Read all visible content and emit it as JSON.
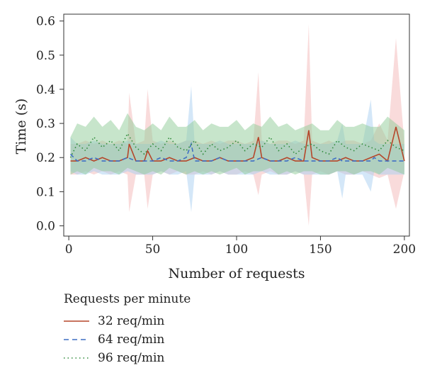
{
  "chart_data": {
    "type": "line",
    "title": "",
    "xlabel": "Number of requests",
    "ylabel": "Time (s)",
    "xlim": [
      -3,
      203
    ],
    "ylim": [
      -0.03,
      0.62
    ],
    "xticks": [
      0,
      50,
      100,
      150,
      200
    ],
    "yticks": [
      0.0,
      0.1,
      0.2,
      0.3,
      0.4,
      0.5,
      0.6
    ],
    "xtick_labels": [
      "0",
      "50",
      "100",
      "150",
      "200"
    ],
    "ytick_labels": [
      "0.0",
      "0.1",
      "0.2",
      "0.3",
      "0.4",
      "0.5",
      "0.6"
    ],
    "grid": false,
    "legend_position": "below",
    "legend_title": "Requests per minute",
    "series": [
      {
        "name": "32 req/min",
        "color": "#b5462a",
        "band_color": "#f4b8b8",
        "line_style": "solid",
        "x": [
          1,
          5,
          10,
          15,
          20,
          25,
          30,
          35,
          36,
          40,
          45,
          47,
          50,
          55,
          60,
          65,
          70,
          75,
          80,
          85,
          90,
          95,
          100,
          105,
          110,
          113,
          115,
          120,
          125,
          130,
          135,
          140,
          143,
          145,
          150,
          155,
          160,
          165,
          170,
          175,
          180,
          185,
          190,
          195,
          200
        ],
        "y": [
          0.19,
          0.19,
          0.2,
          0.19,
          0.2,
          0.19,
          0.19,
          0.2,
          0.24,
          0.19,
          0.19,
          0.22,
          0.19,
          0.19,
          0.2,
          0.19,
          0.19,
          0.2,
          0.19,
          0.19,
          0.2,
          0.19,
          0.19,
          0.19,
          0.2,
          0.26,
          0.2,
          0.19,
          0.19,
          0.2,
          0.19,
          0.19,
          0.28,
          0.2,
          0.19,
          0.19,
          0.19,
          0.2,
          0.19,
          0.19,
          0.2,
          0.21,
          0.19,
          0.29,
          0.19
        ],
        "y_low": [
          0.15,
          0.15,
          0.16,
          0.15,
          0.16,
          0.15,
          0.16,
          0.15,
          0.04,
          0.15,
          0.15,
          0.05,
          0.15,
          0.16,
          0.15,
          0.16,
          0.15,
          0.15,
          0.16,
          0.15,
          0.16,
          0.15,
          0.15,
          0.16,
          0.15,
          0.09,
          0.15,
          0.16,
          0.15,
          0.15,
          0.16,
          0.15,
          0.0,
          0.15,
          0.16,
          0.15,
          0.16,
          0.15,
          0.15,
          0.16,
          0.15,
          0.14,
          0.15,
          0.05,
          0.16
        ],
        "y_high": [
          0.24,
          0.24,
          0.25,
          0.24,
          0.25,
          0.24,
          0.25,
          0.24,
          0.39,
          0.24,
          0.25,
          0.4,
          0.25,
          0.24,
          0.25,
          0.24,
          0.25,
          0.25,
          0.24,
          0.25,
          0.24,
          0.25,
          0.25,
          0.24,
          0.25,
          0.45,
          0.25,
          0.24,
          0.25,
          0.25,
          0.24,
          0.25,
          0.59,
          0.25,
          0.24,
          0.25,
          0.24,
          0.25,
          0.25,
          0.24,
          0.25,
          0.3,
          0.25,
          0.55,
          0.24
        ]
      },
      {
        "name": "64 req/min",
        "color": "#3f6fc4",
        "band_color": "#a9cff2",
        "line_style": "dashed",
        "x": [
          1,
          5,
          10,
          15,
          20,
          25,
          30,
          35,
          40,
          45,
          50,
          55,
          60,
          65,
          70,
          73,
          75,
          80,
          85,
          90,
          95,
          100,
          105,
          110,
          115,
          120,
          125,
          130,
          135,
          140,
          145,
          150,
          155,
          160,
          163,
          165,
          170,
          175,
          180,
          182,
          185,
          190,
          195,
          200
        ],
        "y": [
          0.21,
          0.19,
          0.19,
          0.2,
          0.19,
          0.19,
          0.19,
          0.2,
          0.19,
          0.19,
          0.19,
          0.2,
          0.19,
          0.19,
          0.2,
          0.24,
          0.19,
          0.19,
          0.19,
          0.2,
          0.19,
          0.19,
          0.19,
          0.19,
          0.2,
          0.19,
          0.19,
          0.19,
          0.2,
          0.19,
          0.19,
          0.19,
          0.19,
          0.2,
          0.19,
          0.19,
          0.19,
          0.19,
          0.19,
          0.2,
          0.19,
          0.19,
          0.19,
          0.19
        ],
        "y_low": [
          0.16,
          0.15,
          0.15,
          0.16,
          0.15,
          0.15,
          0.15,
          0.16,
          0.15,
          0.15,
          0.15,
          0.16,
          0.15,
          0.15,
          0.16,
          0.04,
          0.15,
          0.15,
          0.15,
          0.16,
          0.15,
          0.15,
          0.15,
          0.15,
          0.16,
          0.15,
          0.15,
          0.15,
          0.16,
          0.15,
          0.15,
          0.15,
          0.15,
          0.16,
          0.08,
          0.15,
          0.15,
          0.15,
          0.1,
          0.16,
          0.15,
          0.15,
          0.15,
          0.15
        ],
        "y_high": [
          0.26,
          0.24,
          0.24,
          0.25,
          0.24,
          0.24,
          0.24,
          0.25,
          0.24,
          0.24,
          0.24,
          0.25,
          0.24,
          0.24,
          0.25,
          0.41,
          0.24,
          0.24,
          0.24,
          0.25,
          0.24,
          0.24,
          0.24,
          0.24,
          0.25,
          0.24,
          0.24,
          0.24,
          0.25,
          0.24,
          0.24,
          0.24,
          0.24,
          0.25,
          0.3,
          0.24,
          0.24,
          0.24,
          0.37,
          0.25,
          0.24,
          0.24,
          0.24,
          0.24
        ]
      },
      {
        "name": "96 req/min",
        "color": "#2f8a3a",
        "band_color": "#8fcb98",
        "line_style": "dotted",
        "x": [
          1,
          5,
          10,
          15,
          20,
          25,
          30,
          35,
          40,
          45,
          50,
          55,
          60,
          65,
          70,
          75,
          80,
          85,
          90,
          95,
          100,
          105,
          110,
          115,
          120,
          125,
          130,
          135,
          140,
          145,
          150,
          155,
          160,
          165,
          170,
          175,
          180,
          185,
          190,
          195,
          200
        ],
        "y": [
          0.2,
          0.24,
          0.22,
          0.26,
          0.23,
          0.25,
          0.22,
          0.27,
          0.23,
          0.21,
          0.24,
          0.22,
          0.26,
          0.23,
          0.22,
          0.25,
          0.21,
          0.24,
          0.22,
          0.23,
          0.25,
          0.22,
          0.24,
          0.23,
          0.26,
          0.22,
          0.24,
          0.21,
          0.23,
          0.24,
          0.22,
          0.21,
          0.25,
          0.23,
          0.22,
          0.24,
          0.23,
          0.22,
          0.25,
          0.23,
          0.22
        ],
        "y_low": [
          0.15,
          0.16,
          0.15,
          0.17,
          0.16,
          0.16,
          0.15,
          0.17,
          0.16,
          0.15,
          0.16,
          0.15,
          0.17,
          0.16,
          0.15,
          0.16,
          0.15,
          0.16,
          0.15,
          0.16,
          0.17,
          0.15,
          0.16,
          0.16,
          0.17,
          0.15,
          0.16,
          0.15,
          0.16,
          0.16,
          0.15,
          0.15,
          0.16,
          0.16,
          0.15,
          0.16,
          0.16,
          0.15,
          0.17,
          0.16,
          0.15
        ],
        "y_high": [
          0.26,
          0.3,
          0.29,
          0.32,
          0.29,
          0.31,
          0.28,
          0.33,
          0.29,
          0.28,
          0.3,
          0.28,
          0.32,
          0.29,
          0.29,
          0.31,
          0.28,
          0.3,
          0.29,
          0.29,
          0.31,
          0.28,
          0.3,
          0.29,
          0.32,
          0.29,
          0.3,
          0.28,
          0.29,
          0.3,
          0.28,
          0.28,
          0.31,
          0.29,
          0.29,
          0.3,
          0.29,
          0.29,
          0.32,
          0.3,
          0.28
        ]
      }
    ]
  }
}
